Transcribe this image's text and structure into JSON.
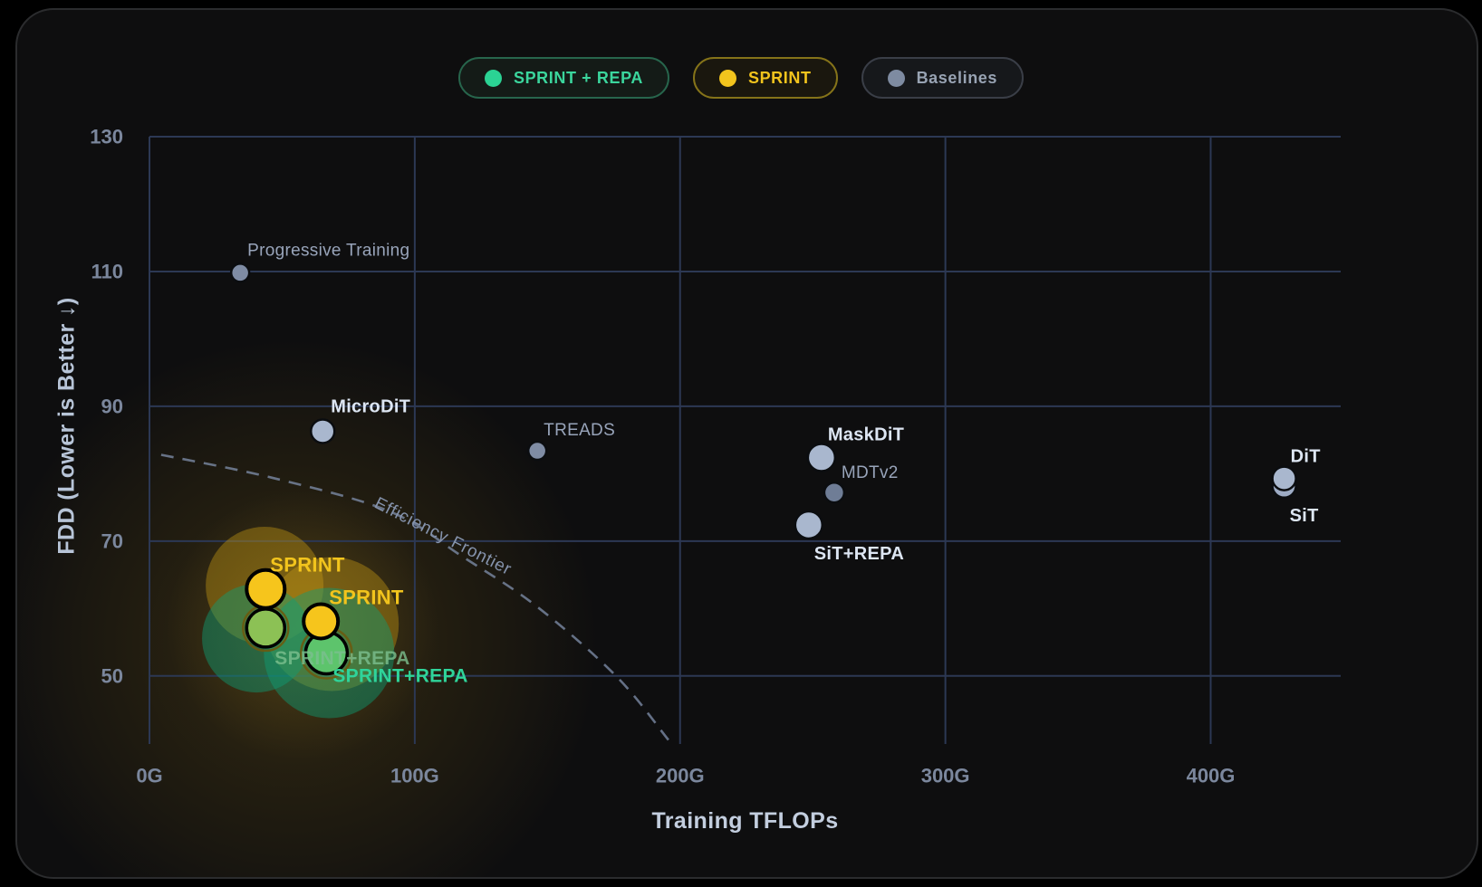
{
  "legend": [
    {
      "label": "SPRINT + REPA",
      "dot": "#2bd394",
      "text": "#3bd69d",
      "border": "#27654c",
      "bg": "#141b17"
    },
    {
      "label": "SPRINT",
      "dot": "#f2c41d",
      "text": "#f2c41d",
      "border": "#857319",
      "bg": "#1a170e"
    },
    {
      "label": "Baselines",
      "dot": "#7e8ba1",
      "text": "#98a3b3",
      "border": "#3a3e47",
      "bg": "#16181b"
    }
  ],
  "chart_data": {
    "type": "scatter",
    "xlabel": "Training TFLOPs",
    "ylabel": "FDD (Lower is Better ↓)",
    "xlim": [
      0,
      449
    ],
    "ylim": [
      39.9,
      130
    ],
    "grid": true,
    "x_ticks": [
      {
        "value": 0,
        "label": "0G"
      },
      {
        "value": 100,
        "label": "100G"
      },
      {
        "value": 200,
        "label": "200G"
      },
      {
        "value": 300,
        "label": "300G"
      },
      {
        "value": 400,
        "label": "400G"
      }
    ],
    "y_ticks": [
      {
        "value": 130,
        "label": "130"
      },
      {
        "value": 110,
        "label": "110"
      },
      {
        "value": 90,
        "label": "90"
      },
      {
        "value": 70,
        "label": "70"
      },
      {
        "value": 50,
        "label": "50"
      }
    ],
    "series": [
      {
        "name": "SPRINT + REPA",
        "stroke": "#000000",
        "stroke_w": 3.5,
        "points": [
          {
            "label": "SPRINT+REPA",
            "x": 43.8,
            "y": 57.1,
            "r": 21,
            "fill": "#8cc155",
            "label_style": "repa-dim",
            "label_dx": 10,
            "label_dy": 40
          },
          {
            "label": "SPRINT+REPA",
            "x": 66.7,
            "y": 53.4,
            "r": 23,
            "fill": "#5dc46c",
            "label_style": "repa",
            "label_dx": 7,
            "label_dy": 32
          }
        ]
      },
      {
        "name": "SPRINT",
        "stroke": "#000000",
        "stroke_w": 4,
        "points": [
          {
            "label": "SPRINT",
            "x": 43.8,
            "y": 62.9,
            "r": 21,
            "fill": "#f6c51c",
            "label_style": "sprint",
            "label_dx": 5,
            "label_dy": -19
          },
          {
            "label": "SPRINT",
            "x": 64.6,
            "y": 58.1,
            "r": 19,
            "fill": "#f6c51c",
            "label_style": "sprint",
            "label_dx": 9,
            "label_dy": -19
          }
        ]
      },
      {
        "name": "Baselines",
        "stroke": "#0b0d10",
        "stroke_w": 2.5,
        "points": [
          {
            "label": "Progressive Training",
            "x": 34.2,
            "y": 109.8,
            "r": 10,
            "fill": "#7f8ca4",
            "label_style": "muted",
            "label_dx": 8,
            "label_dy": -19
          },
          {
            "label": "MicroDiT",
            "x": 65.3,
            "y": 86.3,
            "r": 13,
            "fill": "#a9b7ce",
            "label_style": "bold",
            "label_dx": 9,
            "label_dy": -21
          },
          {
            "label": "TREADS",
            "x": 146.2,
            "y": 83.4,
            "r": 10,
            "fill": "#7f8ca4",
            "label_style": "muted",
            "label_dx": 7,
            "label_dy": -17
          },
          {
            "label": "MaskDiT",
            "x": 253.3,
            "y": 82.4,
            "r": 15,
            "fill": "#a9b7ce",
            "label_style": "bold",
            "label_dx": 7,
            "label_dy": -19
          },
          {
            "label": "MDTv2",
            "x": 258.1,
            "y": 77.2,
            "r": 11,
            "fill": "#6f7d96",
            "label_style": "muted",
            "label_dx": 8,
            "label_dy": -16
          },
          {
            "label": "SiT+REPA",
            "x": 248.5,
            "y": 72.4,
            "r": 15,
            "fill": "#a9b7ce",
            "label_style": "bold",
            "label_dx": 6,
            "label_dy": 38
          },
          {
            "label": "SiT",
            "x": 427.7,
            "y": 78.2,
            "r": 13,
            "fill": "#9dabc4",
            "label_style": "bold",
            "label_dx": 6,
            "label_dy": 39
          },
          {
            "label": "DiT",
            "x": 427.7,
            "y": 79.3,
            "r": 13,
            "fill": "#a9b7ce",
            "label_style": "bold",
            "label_dx": 7,
            "label_dy": -18
          }
        ]
      }
    ],
    "halos": [
      {
        "x": 43.4,
        "y": 63.4,
        "r": 65,
        "color": "#c79c15",
        "opacity": 0.4
      },
      {
        "x": 68.7,
        "y": 57.7,
        "r": 74,
        "color": "#c79c15",
        "opacity": 0.4
      },
      {
        "x": 40.3,
        "y": 55.6,
        "r": 60,
        "color": "#0e9e76",
        "opacity": 0.45
      },
      {
        "x": 67.7,
        "y": 53.4,
        "r": 72,
        "color": "#0e9e76",
        "opacity": 0.45
      }
    ],
    "rings": [
      {
        "x": 43.8,
        "y": 57.1,
        "r": 25,
        "color": "#6b5a10"
      },
      {
        "x": 66.7,
        "y": 53.4,
        "r": 28,
        "color": "#6b5a10"
      }
    ],
    "frontier": {
      "label": "Efficiency Frontier",
      "points": [
        [
          4.4,
          82.8
        ],
        [
          46.2,
          79.4
        ],
        [
          90.6,
          74.4
        ],
        [
          118,
          67.7
        ],
        [
          146,
          60.3
        ],
        [
          176.1,
          49.9
        ],
        [
          195.6,
          40.5
        ]
      ],
      "label_x": 84.4,
      "label_y": 75.1,
      "label_angle": 27,
      "color": "#7b8aa4"
    },
    "colors": {
      "grid": "#2c3854",
      "tick_text": "#7b879d",
      "label_bold": "#dde6f3",
      "label_muted": "#98a4ba",
      "label_sprint": "#f2c41d",
      "label_repa": "#2fd49a",
      "label_repa_dim": "#7cc08f"
    }
  }
}
